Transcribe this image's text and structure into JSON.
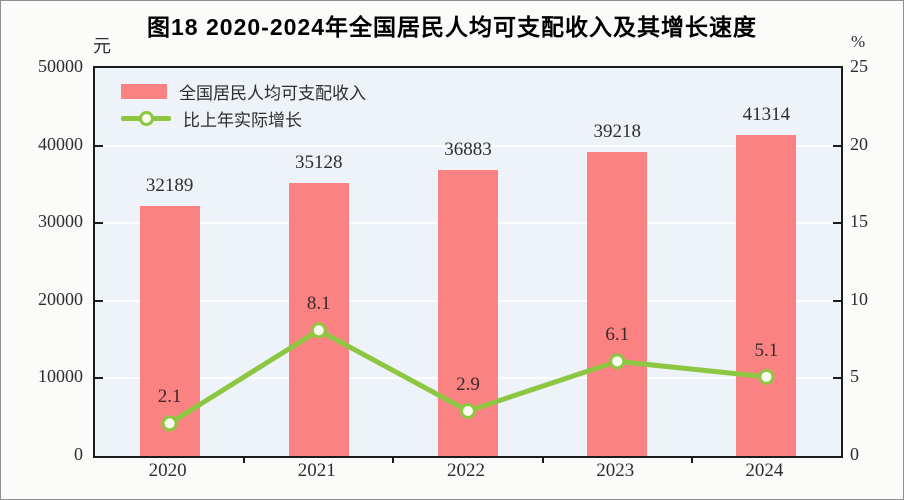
{
  "title": "图18  2020-2024年全国居民人均可支配收入及其增长速度",
  "left_axis": {
    "unit": "元",
    "ticks": [
      "50000",
      "40000",
      "30000",
      "20000",
      "10000",
      "0"
    ]
  },
  "right_axis": {
    "unit": "%",
    "ticks": [
      "25",
      "20",
      "15",
      "10",
      "5",
      "0"
    ]
  },
  "legend": [
    {
      "label": "全国居民人均可支配收入",
      "type": "bar",
      "color": "#fa8282"
    },
    {
      "label": "比上年实际增长",
      "type": "line",
      "color": "#8dc641"
    }
  ],
  "colors": {
    "bar": "#fa8282",
    "line": "#8dc641",
    "marker_fill": "#fffef2",
    "plot_background": "#edf3f8",
    "grid": "#ffffff"
  },
  "chart_data": {
    "type": "bar",
    "title": "图18  2020-2024年全国居民人均可支配收入及其增长速度",
    "categories": [
      "2020",
      "2021",
      "2022",
      "2023",
      "2024"
    ],
    "series": [
      {
        "name": "全国居民人均可支配收入",
        "type": "bar",
        "axis": "left",
        "unit": "元",
        "values": [
          32189,
          35128,
          36883,
          39218,
          41314
        ],
        "color": "#fa8282"
      },
      {
        "name": "比上年实际增长",
        "type": "line",
        "axis": "right",
        "unit": "%",
        "values": [
          2.1,
          8.1,
          2.9,
          6.1,
          5.1
        ],
        "color": "#8dc641"
      }
    ],
    "left_ylim": [
      0,
      50000
    ],
    "right_ylim": [
      0,
      25
    ],
    "left_tick_step": 10000,
    "right_tick_step": 5,
    "grid": true,
    "legend_position": "top-left"
  }
}
